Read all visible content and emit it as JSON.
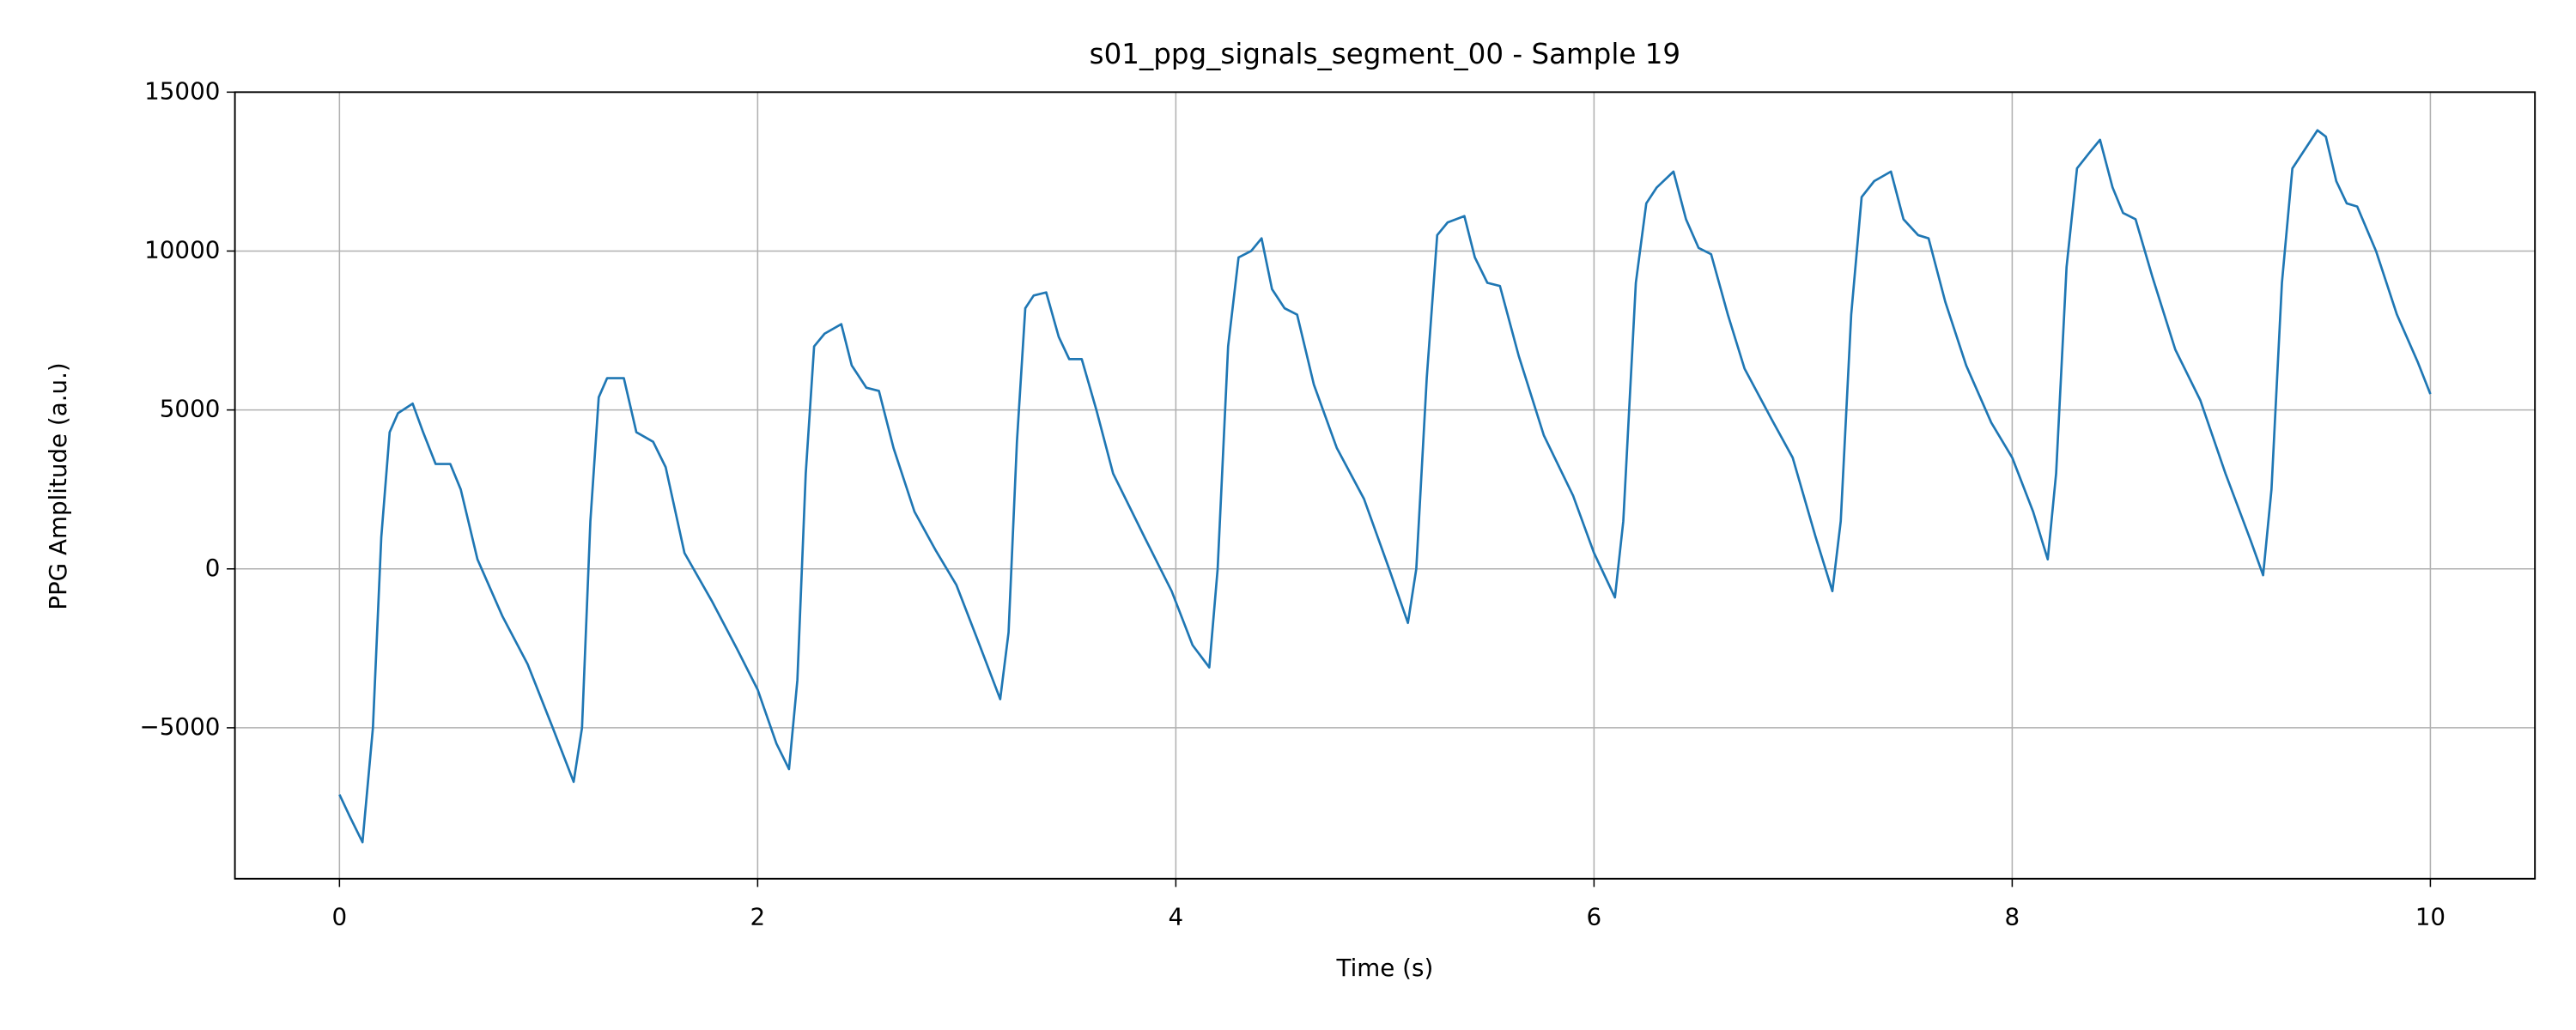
{
  "chart_data": {
    "type": "line",
    "title": "s01_ppg_signals_segment_00 - Sample 19",
    "xlabel": "Time (s)",
    "ylabel": "PPG Amplitude (a.u.)",
    "xlim": [
      -0.5,
      10.5
    ],
    "ylim": [
      -9750,
      15000
    ],
    "xticks": [
      0,
      2,
      4,
      6,
      8,
      10
    ],
    "yticks": [
      {
        "value": -5000,
        "label": "−5000"
      },
      0,
      5000,
      10000,
      15000
    ],
    "grid": true,
    "series": [
      {
        "name": "PPG",
        "color": "#1f77b4",
        "x": [
          0,
          0.05,
          0.11,
          0.16,
          0.2,
          0.24,
          0.28,
          0.35,
          0.4,
          0.46,
          0.53,
          0.58,
          0.66,
          0.78,
          0.9,
          1.02,
          1.12,
          1.16,
          1.2,
          1.24,
          1.28,
          1.36,
          1.42,
          1.5,
          1.56,
          1.65,
          1.78,
          1.9,
          2.0,
          2.09,
          2.15,
          2.19,
          2.23,
          2.27,
          2.32,
          2.4,
          2.45,
          2.52,
          2.58,
          2.65,
          2.75,
          2.85,
          2.95,
          3.05,
          3.16,
          3.2,
          3.24,
          3.28,
          3.32,
          3.38,
          3.44,
          3.49,
          3.55,
          3.62,
          3.7,
          3.85,
          3.98,
          4.08,
          4.16,
          4.2,
          4.25,
          4.3,
          4.36,
          4.41,
          4.46,
          4.52,
          4.58,
          4.66,
          4.77,
          4.9,
          5.02,
          5.11,
          5.15,
          5.2,
          5.25,
          5.3,
          5.38,
          5.43,
          5.49,
          5.55,
          5.64,
          5.76,
          5.9,
          6.0,
          6.1,
          6.14,
          6.2,
          6.25,
          6.3,
          6.38,
          6.44,
          6.5,
          6.56,
          6.64,
          6.72,
          6.85,
          6.95,
          7.06,
          7.14,
          7.18,
          7.23,
          7.28,
          7.34,
          7.42,
          7.48,
          7.55,
          7.6,
          7.68,
          7.78,
          7.9,
          8.0,
          8.1,
          8.17,
          8.21,
          8.26,
          8.31,
          8.37,
          8.42,
          8.48,
          8.53,
          8.59,
          8.67,
          8.78,
          8.9,
          9.02,
          9.14,
          9.2,
          9.24,
          9.29,
          9.34,
          9.4,
          9.46,
          9.5,
          9.55,
          9.6,
          9.65,
          9.74,
          9.84,
          9.94,
          10.0
        ],
        "values": [
          -7100,
          -7800,
          -8600,
          -5000,
          1000,
          4300,
          4900,
          5200,
          4300,
          3300,
          3300,
          2500,
          300,
          -1500,
          -3000,
          -5000,
          -6700,
          -5000,
          1500,
          5400,
          6000,
          6000,
          4300,
          4000,
          3200,
          500,
          -1000,
          -2500,
          -3800,
          -5500,
          -6300,
          -3500,
          3000,
          7000,
          7400,
          7700,
          6400,
          5700,
          5600,
          3800,
          1800,
          600,
          -500,
          -2200,
          -4100,
          -2000,
          4000,
          8200,
          8600,
          8700,
          7300,
          6600,
          6600,
          5000,
          3000,
          1000,
          -700,
          -2400,
          -3100,
          0,
          7000,
          9800,
          10000,
          10400,
          8800,
          8200,
          8000,
          5800,
          3800,
          2200,
          0,
          -1700,
          0,
          6000,
          10500,
          10900,
          11100,
          9800,
          9000,
          8900,
          6700,
          4200,
          2300,
          500,
          -900,
          1500,
          9000,
          11500,
          12000,
          12500,
          11000,
          10100,
          9900,
          8000,
          6300,
          4700,
          3500,
          1000,
          -700,
          1500,
          8000,
          11700,
          12200,
          12500,
          11000,
          10500,
          10400,
          8400,
          6400,
          4600,
          3500,
          1800,
          300,
          3000,
          9500,
          12600,
          13100,
          13500,
          12000,
          11200,
          11000,
          9200,
          6900,
          5300,
          3000,
          900,
          -200,
          2500,
          9000,
          12600,
          13200,
          13800,
          13600,
          12200,
          11500,
          11400,
          10000,
          8000,
          6500,
          5500
        ]
      }
    ]
  }
}
